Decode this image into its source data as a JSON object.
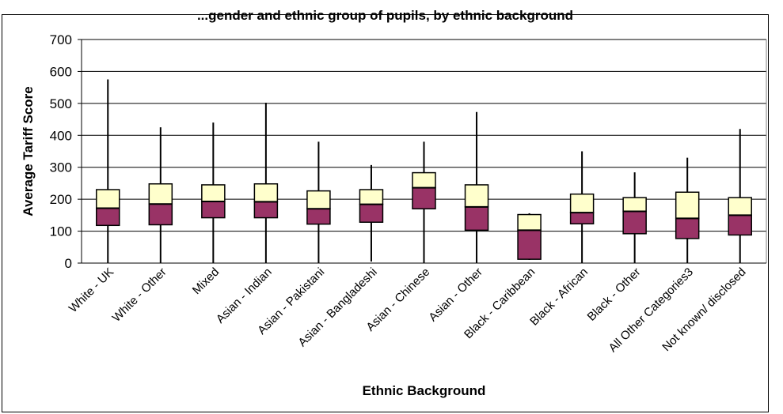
{
  "chart_data": {
    "type": "boxplot",
    "title": "...gender and ethnic group of pupils, by ethnic background",
    "xlabel": "Ethnic Background",
    "ylabel": "Average Tariff Score",
    "ylim": [
      0,
      700
    ],
    "yticks": [
      0,
      100,
      200,
      300,
      400,
      500,
      600,
      700
    ],
    "grid": true,
    "colors": {
      "lower_box": "#993366",
      "upper_box": "#ffffcc",
      "grid": "#000000"
    },
    "categories": [
      "White - UK",
      "White - Other",
      "Mixed",
      "Asian - Indian",
      "Asian - Pakistani",
      "Asian - Bangladeshi",
      "Asian - Chinese",
      "Asian - Other",
      "Black - Caribbean",
      "Black - African",
      "Black - Other",
      "All Other Categories3",
      "Not known/ disclosed"
    ],
    "series": [
      {
        "min": 0,
        "q1": 118,
        "median": 172,
        "q3": 230,
        "max": 575
      },
      {
        "min": 0,
        "q1": 120,
        "median": 185,
        "q3": 248,
        "max": 425
      },
      {
        "min": 0,
        "q1": 142,
        "median": 193,
        "q3": 245,
        "max": 440
      },
      {
        "min": 0,
        "q1": 142,
        "median": 192,
        "q3": 248,
        "max": 502
      },
      {
        "min": 0,
        "q1": 122,
        "median": 170,
        "q3": 226,
        "max": 380
      },
      {
        "min": 5,
        "q1": 128,
        "median": 184,
        "q3": 230,
        "max": 307
      },
      {
        "min": 0,
        "q1": 170,
        "median": 236,
        "q3": 283,
        "max": 380
      },
      {
        "min": 0,
        "q1": 103,
        "median": 176,
        "q3": 245,
        "max": 473
      },
      {
        "min": 10,
        "q1": 12,
        "median": 103,
        "q3": 152,
        "max": 156
      },
      {
        "min": 0,
        "q1": 123,
        "median": 158,
        "q3": 216,
        "max": 350
      },
      {
        "min": 0,
        "q1": 92,
        "median": 162,
        "q3": 205,
        "max": 284
      },
      {
        "min": 0,
        "q1": 77,
        "median": 140,
        "q3": 222,
        "max": 330
      },
      {
        "min": 0,
        "q1": 88,
        "median": 150,
        "q3": 205,
        "max": 420
      }
    ]
  }
}
